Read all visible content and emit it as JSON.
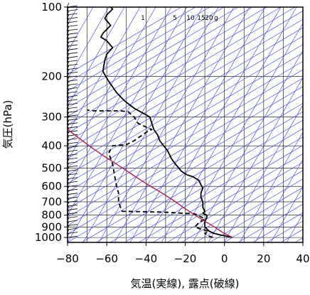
{
  "chart_data": {
    "type": "line",
    "title": "",
    "xlabel": "気温(実線), 露点(破線)",
    "ylabel": "気圧(hPa)",
    "xlim": [
      -80,
      40
    ],
    "ylim": [
      1050,
      100
    ],
    "y_scale": "log",
    "x_ticks": [
      "−80",
      "−60",
      "−40",
      "−20",
      "0",
      "20",
      "40"
    ],
    "x_tick_values": [
      -80,
      -60,
      -40,
      -20,
      0,
      20,
      40
    ],
    "y_ticks": [
      "100",
      "200",
      "300",
      "400",
      "500",
      "600",
      "700",
      "800",
      "900",
      "1000"
    ],
    "y_tick_values": [
      100,
      200,
      300,
      400,
      500,
      600,
      700,
      800,
      900,
      1000
    ],
    "mixing_ratio_labels": [
      "1",
      "5",
      "10",
      "15",
      "20",
      "g"
    ],
    "mixing_ratio_values": [
      1,
      5,
      10,
      15,
      20
    ],
    "grid": true,
    "series": [
      {
        "kind": "temperature",
        "style": "solid",
        "color": "#000000",
        "points": [
          [
            4,
            1000
          ],
          [
            2,
            990
          ],
          [
            -2,
            975
          ],
          [
            -6,
            955
          ],
          [
            -8,
            935
          ],
          [
            -10,
            900
          ],
          [
            -10,
            850
          ],
          [
            -9,
            820
          ],
          [
            -9,
            800
          ],
          [
            -11,
            785
          ],
          [
            -10,
            770
          ],
          [
            -11,
            740
          ],
          [
            -11,
            700
          ],
          [
            -12,
            670
          ],
          [
            -12,
            640
          ],
          [
            -11,
            610
          ],
          [
            -12,
            590
          ],
          [
            -13,
            565
          ],
          [
            -16,
            545
          ],
          [
            -19,
            535
          ],
          [
            -22,
            515
          ],
          [
            -25,
            480
          ],
          [
            -27,
            455
          ],
          [
            -29,
            420
          ],
          [
            -31,
            400
          ],
          [
            -33,
            380
          ],
          [
            -34,
            360
          ],
          [
            -36,
            340
          ],
          [
            -37,
            320
          ],
          [
            -38,
            300
          ],
          [
            -41,
            290
          ],
          [
            -46,
            275
          ],
          [
            -51,
            255
          ],
          [
            -55,
            235
          ],
          [
            -59,
            210
          ],
          [
            -62,
            190
          ],
          [
            -61,
            170
          ],
          [
            -60,
            160
          ],
          [
            -57,
            150
          ],
          [
            -60,
            140
          ],
          [
            -63,
            135
          ],
          [
            -62,
            130
          ],
          [
            -58,
            120
          ],
          [
            -61,
            112
          ],
          [
            -60,
            108
          ],
          [
            -57,
            102
          ],
          [
            -58,
            100
          ]
        ]
      },
      {
        "kind": "dewpoint",
        "style": "dashed",
        "color": "#000000",
        "points": [
          [
            -6,
            1000
          ],
          [
            -8,
            985
          ],
          [
            -10,
            960
          ],
          [
            -8,
            940
          ],
          [
            -12,
            920
          ],
          [
            -15,
            900
          ],
          [
            -13,
            860
          ],
          [
            -10,
            830
          ],
          [
            -15,
            790
          ],
          [
            -32,
            775
          ],
          [
            -52,
            770
          ],
          [
            -53,
            740
          ],
          [
            -54,
            700
          ],
          [
            -54,
            640
          ],
          [
            -55,
            600
          ],
          [
            -56,
            540
          ],
          [
            -57,
            480
          ],
          [
            -59,
            430
          ],
          [
            -57,
            400
          ],
          [
            -50,
            395
          ],
          [
            -46,
            380
          ],
          [
            -40,
            350
          ],
          [
            -37,
            340
          ],
          [
            -44,
            320
          ],
          [
            -46,
            300
          ],
          [
            -49,
            285
          ],
          [
            -53,
            282
          ],
          [
            -67,
            282
          ],
          [
            -70,
            280
          ]
        ]
      },
      {
        "kind": "parcel",
        "style": "solid",
        "color": "#aa1f4f",
        "points": [
          [
            4,
            1000
          ],
          [
            -1,
            950
          ],
          [
            -5,
            900
          ],
          [
            -10,
            850
          ],
          [
            -15,
            800
          ],
          [
            -21,
            740
          ],
          [
            -26,
            690
          ],
          [
            -32,
            640
          ],
          [
            -39,
            590
          ],
          [
            -46,
            540
          ],
          [
            -55,
            480
          ],
          [
            -62,
            440
          ],
          [
            -69,
            400
          ],
          [
            -77,
            355
          ],
          [
            -81,
            335
          ]
        ]
      }
    ],
    "wind_barbs": {
      "x_position": -76,
      "pressure_range": [
        1000,
        100
      ],
      "count": 60
    }
  }
}
